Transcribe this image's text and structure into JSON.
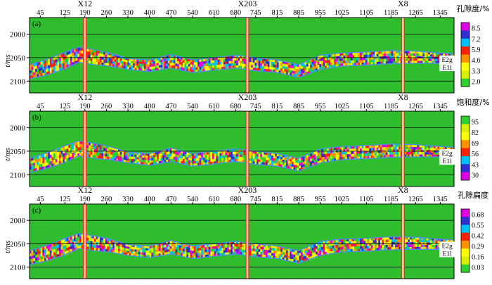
{
  "panels": [
    {
      "id": "a",
      "label": "(a)",
      "attribute": "porosity",
      "colorbar_title": "孔隙度/%",
      "colorbar_ticks": [
        "8.5",
        "7.2",
        "5.9",
        "4.6",
        "3.3",
        "2.0"
      ],
      "colorbar_colors": [
        "#e000e0",
        "#3030d0",
        "#00c0ff",
        "#ff2000",
        "#ff9000",
        "#ffff00",
        "#d8f000",
        "#30d030"
      ]
    },
    {
      "id": "b",
      "label": "(b)",
      "attribute": "saturation",
      "colorbar_title": "饱和度/%",
      "colorbar_ticks": [
        "95",
        "82",
        "69",
        "56",
        "43",
        "30"
      ],
      "colorbar_colors": [
        "#30d030",
        "#d8f000",
        "#ffff00",
        "#ff9000",
        "#ff2000",
        "#00c0ff",
        "#3030d0",
        "#e000e0"
      ]
    },
    {
      "id": "c",
      "label": "(c)",
      "attribute": "pore aspect ratio",
      "colorbar_title": "孔隙扁度",
      "colorbar_ticks": [
        "0.68",
        "0.55",
        "0.42",
        "0.29",
        "0.16",
        "0.03"
      ],
      "colorbar_colors": [
        "#e000e0",
        "#3030d0",
        "#00c0ff",
        "#ff2000",
        "#ff9000",
        "#ffff00",
        "#d8f000",
        "#30d030"
      ]
    }
  ],
  "x_ticks": [
    "45",
    "125",
    "190",
    "260",
    "330",
    "400",
    "470",
    "540",
    "610",
    "680",
    "745",
    "815",
    "885",
    "955",
    "1025",
    "1105",
    "1185",
    "1265",
    "1345"
  ],
  "y_ticks": [
    "2000",
    "2050",
    "2100"
  ],
  "y_axis_label": "t/ms",
  "wells": [
    {
      "name": "X12",
      "trace": 190
    },
    {
      "name": "X203",
      "trace": 718
    },
    {
      "name": "X8",
      "trace": 1224
    }
  ],
  "horizon_labels": {
    "top": "E2g",
    "bottom": "E1l"
  },
  "colors": {
    "background_fill": "#30c030",
    "gridline": "#000000",
    "horizon_line": "#4a90e0",
    "well_line": "#ff2020"
  }
}
